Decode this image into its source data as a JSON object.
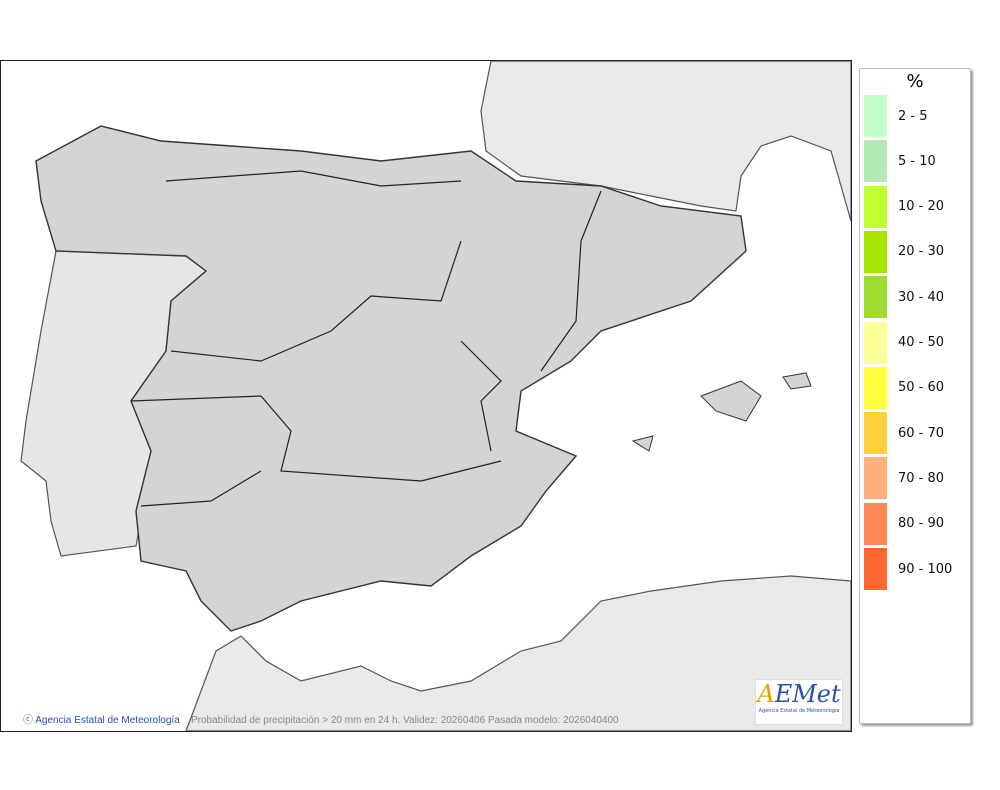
{
  "map": {
    "credit": "Agencia Estatal de Meteorología",
    "caption": "Probabilidad de precipitación > 20 mm en 24 h. Validez: 20260406 Pasada modelo: 2026040400",
    "logo_text": "AEMet",
    "logo_subtitle": "Agencia Estatal de Meteorología"
  },
  "legend": {
    "title": "%",
    "items": [
      {
        "label": "2 - 5",
        "color": "#c0ffc8"
      },
      {
        "label": "5 - 10",
        "color": "#b4eab4"
      },
      {
        "label": "10 - 20",
        "color": "#c0ff30"
      },
      {
        "label": "20 - 30",
        "color": "#a8e600"
      },
      {
        "label": "30 - 40",
        "color": "#a0dc30"
      },
      {
        "label": "40 - 50",
        "color": "#ffff99"
      },
      {
        "label": "50 - 60",
        "color": "#ffff40"
      },
      {
        "label": "60 - 70",
        "color": "#ffd040"
      },
      {
        "label": "70 - 80",
        "color": "#ffb080"
      },
      {
        "label": "80 - 90",
        "color": "#ff8858"
      },
      {
        "label": "90 - 100",
        "color": "#ff6630"
      }
    ]
  }
}
